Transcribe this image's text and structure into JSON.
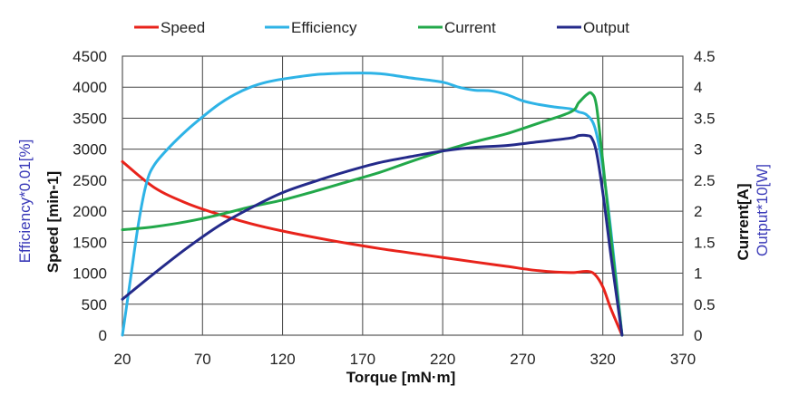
{
  "chart_data": {
    "type": "line",
    "xlabel": "Torque [mN·m]",
    "ylabel_left_outer": "Efficiency*0.01[%]",
    "ylabel_left": "Speed [min-1]",
    "ylabel_right": "Current[A]",
    "ylabel_right_outer": "Output*10[W]",
    "xlim": [
      20,
      370
    ],
    "ylim_left": [
      0,
      4500
    ],
    "ylim_right": [
      0,
      4.5
    ],
    "x_ticks": [
      "20",
      "70",
      "120",
      "170",
      "220",
      "270",
      "320",
      "370"
    ],
    "y_left_ticks": [
      "0",
      "500",
      "1000",
      "1500",
      "2000",
      "2500",
      "3000",
      "3500",
      "4000",
      "4500"
    ],
    "y_right_ticks": [
      "0",
      "0.5",
      "1",
      "1.5",
      "2",
      "2.5",
      "3",
      "3.5",
      "4",
      "4.5"
    ],
    "grid": true,
    "legend_position": "top",
    "series": [
      {
        "name": "Speed",
        "color": "#e8231b",
        "axis": "left",
        "x": [
          20,
          40,
          60,
          80,
          100,
          120,
          150,
          180,
          210,
          240,
          260,
          280,
          300,
          310,
          315,
          320,
          325,
          332
        ],
        "y": [
          2800,
          2380,
          2130,
          1950,
          1800,
          1680,
          1530,
          1400,
          1290,
          1180,
          1110,
          1040,
          1010,
          1030,
          980,
          780,
          430,
          0
        ]
      },
      {
        "name": "Efficiency",
        "color": "#2eb3e6",
        "axis": "left",
        "x": [
          20,
          25,
          30,
          35,
          40,
          50,
          60,
          70,
          80,
          90,
          100,
          110,
          120,
          140,
          160,
          180,
          200,
          220,
          230,
          240,
          250,
          260,
          270,
          280,
          290,
          300,
          305,
          310,
          315,
          320,
          325,
          332
        ],
        "y": [
          0,
          900,
          1800,
          2450,
          2750,
          3050,
          3300,
          3520,
          3720,
          3880,
          4000,
          4080,
          4130,
          4200,
          4225,
          4220,
          4150,
          4080,
          4000,
          3950,
          3940,
          3880,
          3780,
          3720,
          3680,
          3650,
          3600,
          3550,
          3350,
          2700,
          1700,
          0
        ]
      },
      {
        "name": "Current",
        "color": "#22a84a",
        "axis": "right",
        "x": [
          20,
          40,
          60,
          80,
          100,
          120,
          140,
          160,
          180,
          200,
          220,
          240,
          260,
          280,
          300,
          305,
          310,
          313,
          316,
          320,
          325,
          332
        ],
        "y": [
          1.7,
          1.75,
          1.83,
          1.94,
          2.07,
          2.18,
          2.32,
          2.47,
          2.62,
          2.8,
          2.97,
          3.12,
          3.25,
          3.42,
          3.6,
          3.75,
          3.88,
          3.9,
          3.7,
          2.8,
          1.6,
          0
        ]
      },
      {
        "name": "Output",
        "color": "#242a8a",
        "axis": "right",
        "x": [
          20,
          40,
          60,
          80,
          100,
          120,
          140,
          160,
          180,
          200,
          220,
          240,
          260,
          280,
          300,
          305,
          310,
          313,
          316,
          320,
          325,
          332
        ],
        "y": [
          0.58,
          1.0,
          1.4,
          1.76,
          2.05,
          2.3,
          2.48,
          2.64,
          2.78,
          2.88,
          2.97,
          3.03,
          3.06,
          3.12,
          3.18,
          3.22,
          3.22,
          3.18,
          2.95,
          2.3,
          1.3,
          0
        ]
      }
    ]
  }
}
